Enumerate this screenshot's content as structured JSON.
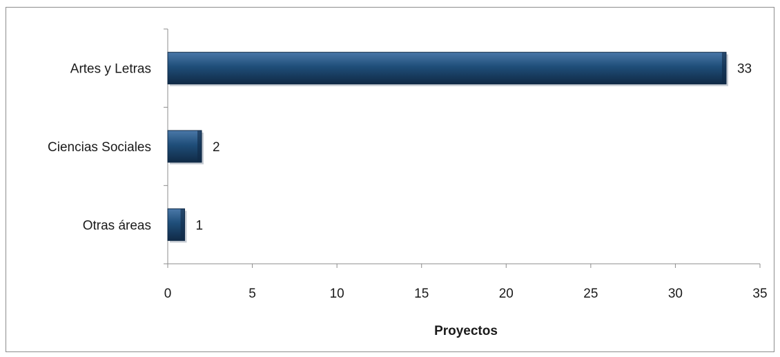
{
  "chart_data": {
    "type": "bar",
    "orientation": "horizontal",
    "categories": [
      "Artes y Letras",
      "Ciencias Sociales",
      "Otras áreas"
    ],
    "values": [
      33,
      2,
      1
    ],
    "data_labels": [
      "33",
      "2",
      "1"
    ],
    "title": "",
    "xlabel": "Proyectos",
    "ylabel": "",
    "xlim": [
      0,
      35
    ],
    "x_ticks": [
      "0",
      "5",
      "10",
      "15",
      "20",
      "25",
      "30",
      "35"
    ],
    "grid": false,
    "legend": "none",
    "colors": {
      "bar": "#1f4e79",
      "bar_dark": "#102a46",
      "bar_light": "#4a78a8",
      "axis": "#8c8c8c"
    }
  }
}
